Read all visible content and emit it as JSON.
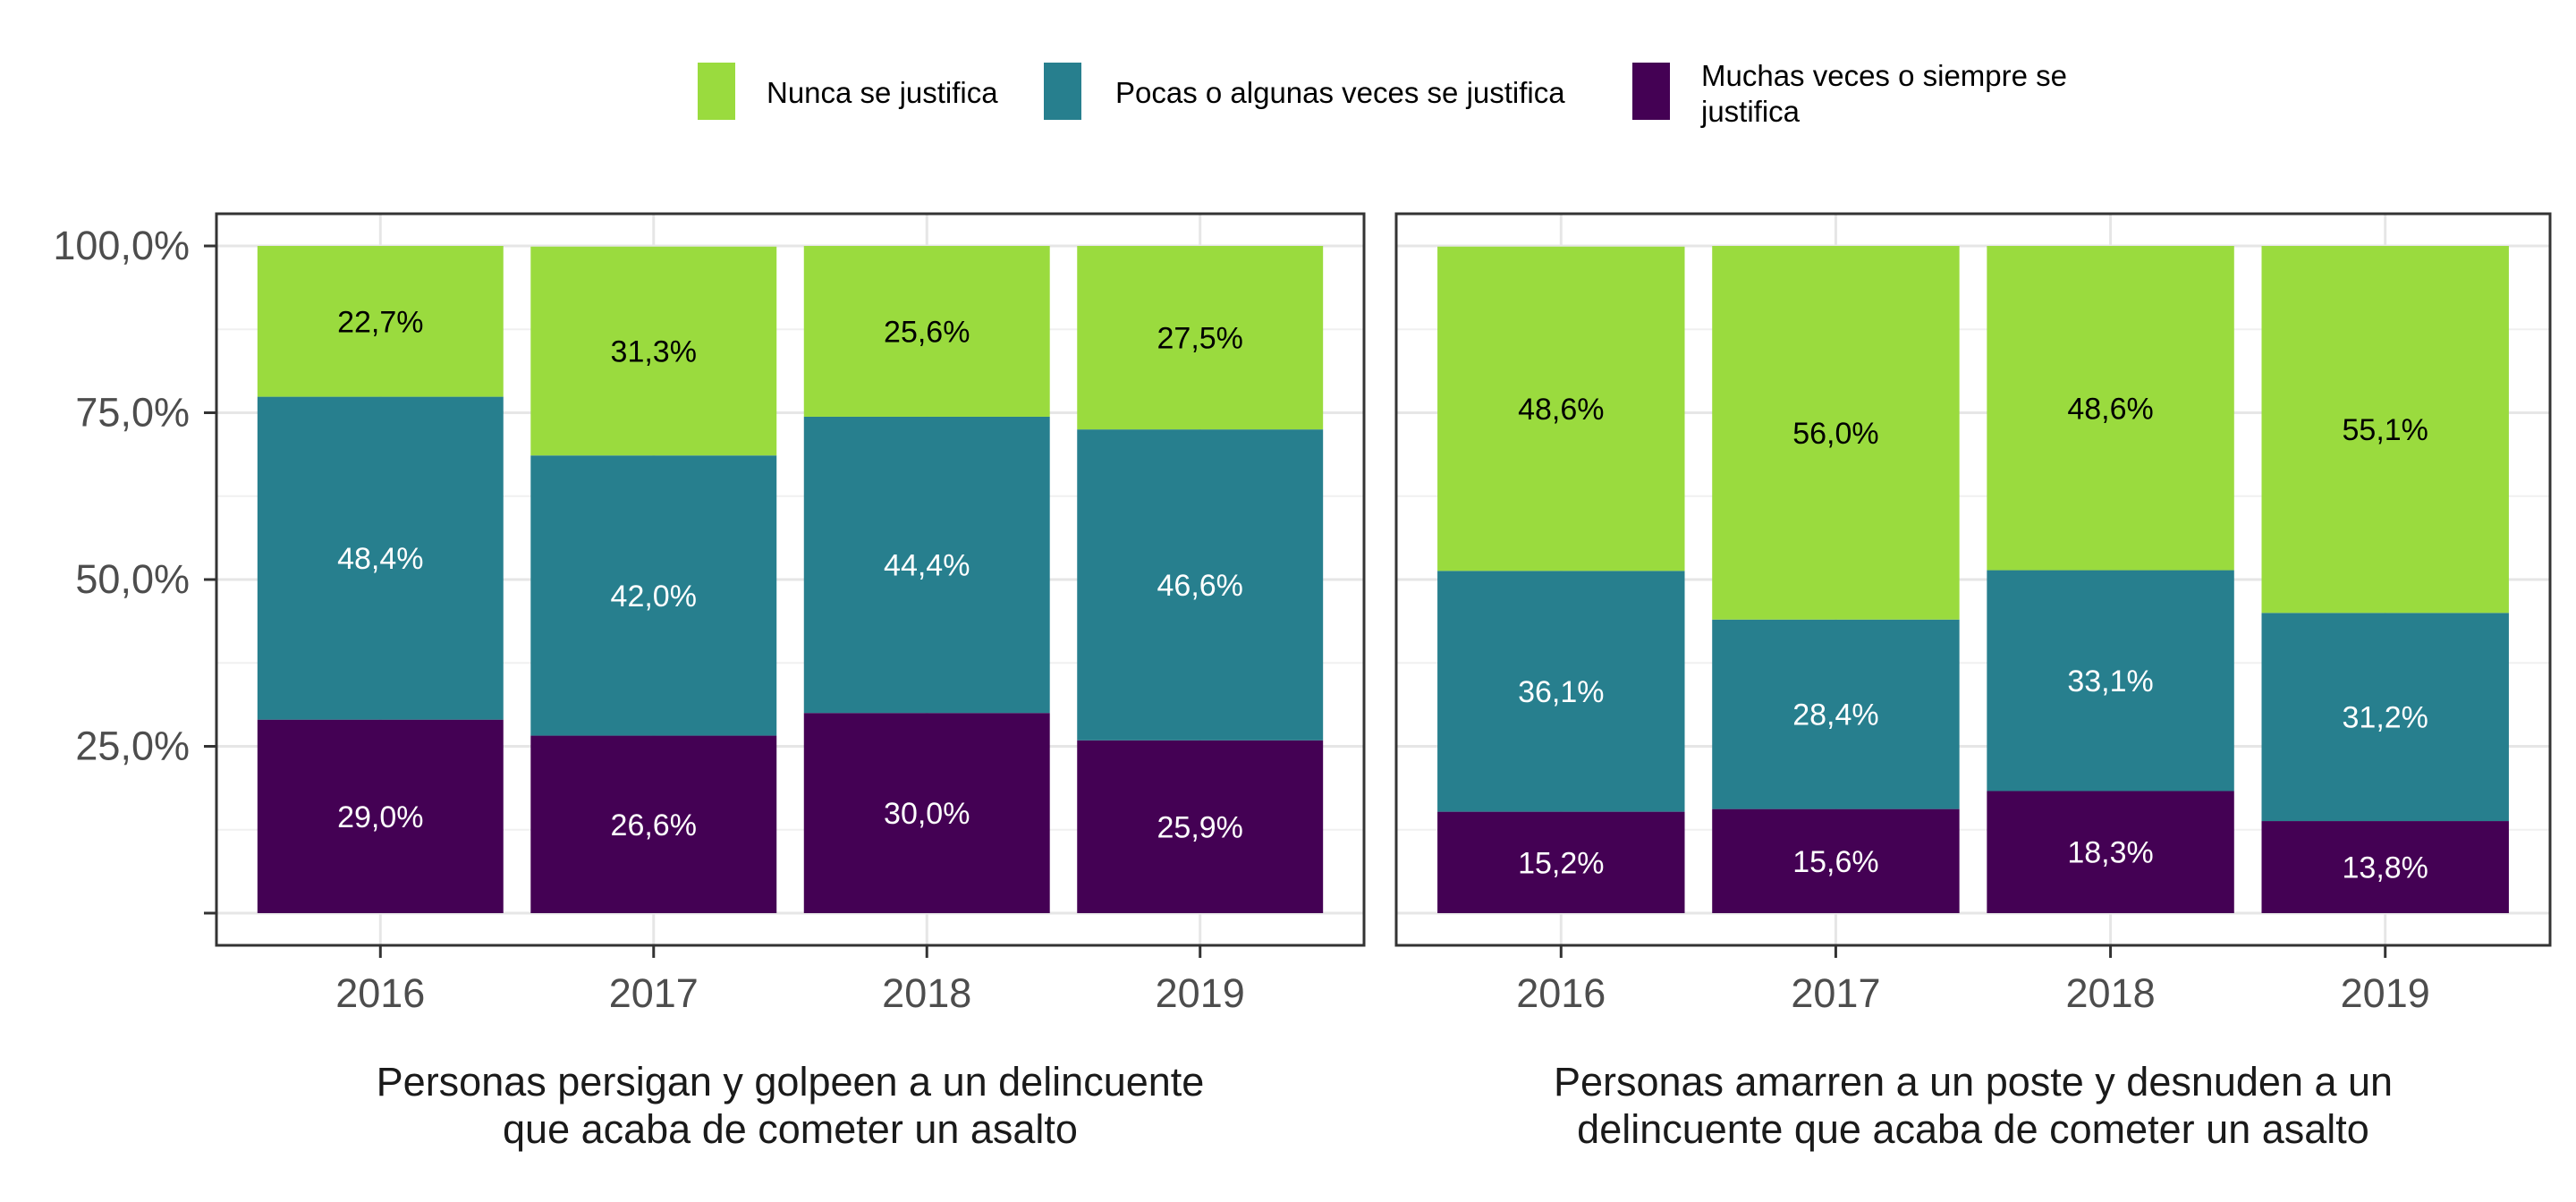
{
  "chart_data": {
    "type": "bar",
    "stacked": true,
    "categories": [
      "2016",
      "2017",
      "2018",
      "2019"
    ],
    "ylim": [
      0,
      100
    ],
    "y_ticks": [
      "25,0%",
      "50,0%",
      "75,0%",
      "100,0%"
    ],
    "grid": true,
    "legend_position": "top",
    "legend": [
      {
        "key": "nunca",
        "label": "Nunca se justifica",
        "color": "#9ADB3E"
      },
      {
        "key": "pocas",
        "label": "Pocas o algunas veces se justifica",
        "color": "#277F8E"
      },
      {
        "key": "muchas",
        "label": "Muchas veces o siempre se justifica",
        "color": "#440154"
      }
    ],
    "panels": [
      {
        "title": "Personas persigan y golpeen a un delincuente que acaba de cometer un asalto",
        "series": [
          {
            "key": "muchas",
            "name": "Muchas veces o siempre se justifica",
            "values": [
              29.0,
              26.6,
              30.0,
              25.9
            ],
            "labels": [
              "29,0%",
              "26,6%",
              "30,0%",
              "25,9%"
            ]
          },
          {
            "key": "pocas",
            "name": "Pocas o algunas veces se justifica",
            "values": [
              48.4,
              42.0,
              44.4,
              46.6
            ],
            "labels": [
              "48,4%",
              "42,0%",
              "44,4%",
              "46,6%"
            ]
          },
          {
            "key": "nunca",
            "name": "Nunca se justifica",
            "values": [
              22.7,
              31.3,
              25.6,
              27.5
            ],
            "labels": [
              "22,7%",
              "31,3%",
              "25,6%",
              "27,5%"
            ]
          }
        ]
      },
      {
        "title": "Personas amarren a un poste y desnuden a un delincuente que acaba de cometer un asalto",
        "series": [
          {
            "key": "muchas",
            "name": "Muchas veces o siempre se justifica",
            "values": [
              15.2,
              15.6,
              18.3,
              13.8
            ],
            "labels": [
              "15,2%",
              "15,6%",
              "18,3%",
              "13,8%"
            ]
          },
          {
            "key": "pocas",
            "name": "Pocas o algunas veces se justifica",
            "values": [
              36.1,
              28.4,
              33.1,
              31.2
            ],
            "labels": [
              "36,1%",
              "28,4%",
              "33,1%",
              "31,2%"
            ]
          },
          {
            "key": "nunca",
            "name": "Nunca se justifica",
            "values": [
              48.6,
              56.0,
              48.6,
              55.1
            ],
            "labels": [
              "48,6%",
              "56,0%",
              "48,6%",
              "55,1%"
            ]
          }
        ]
      }
    ]
  }
}
